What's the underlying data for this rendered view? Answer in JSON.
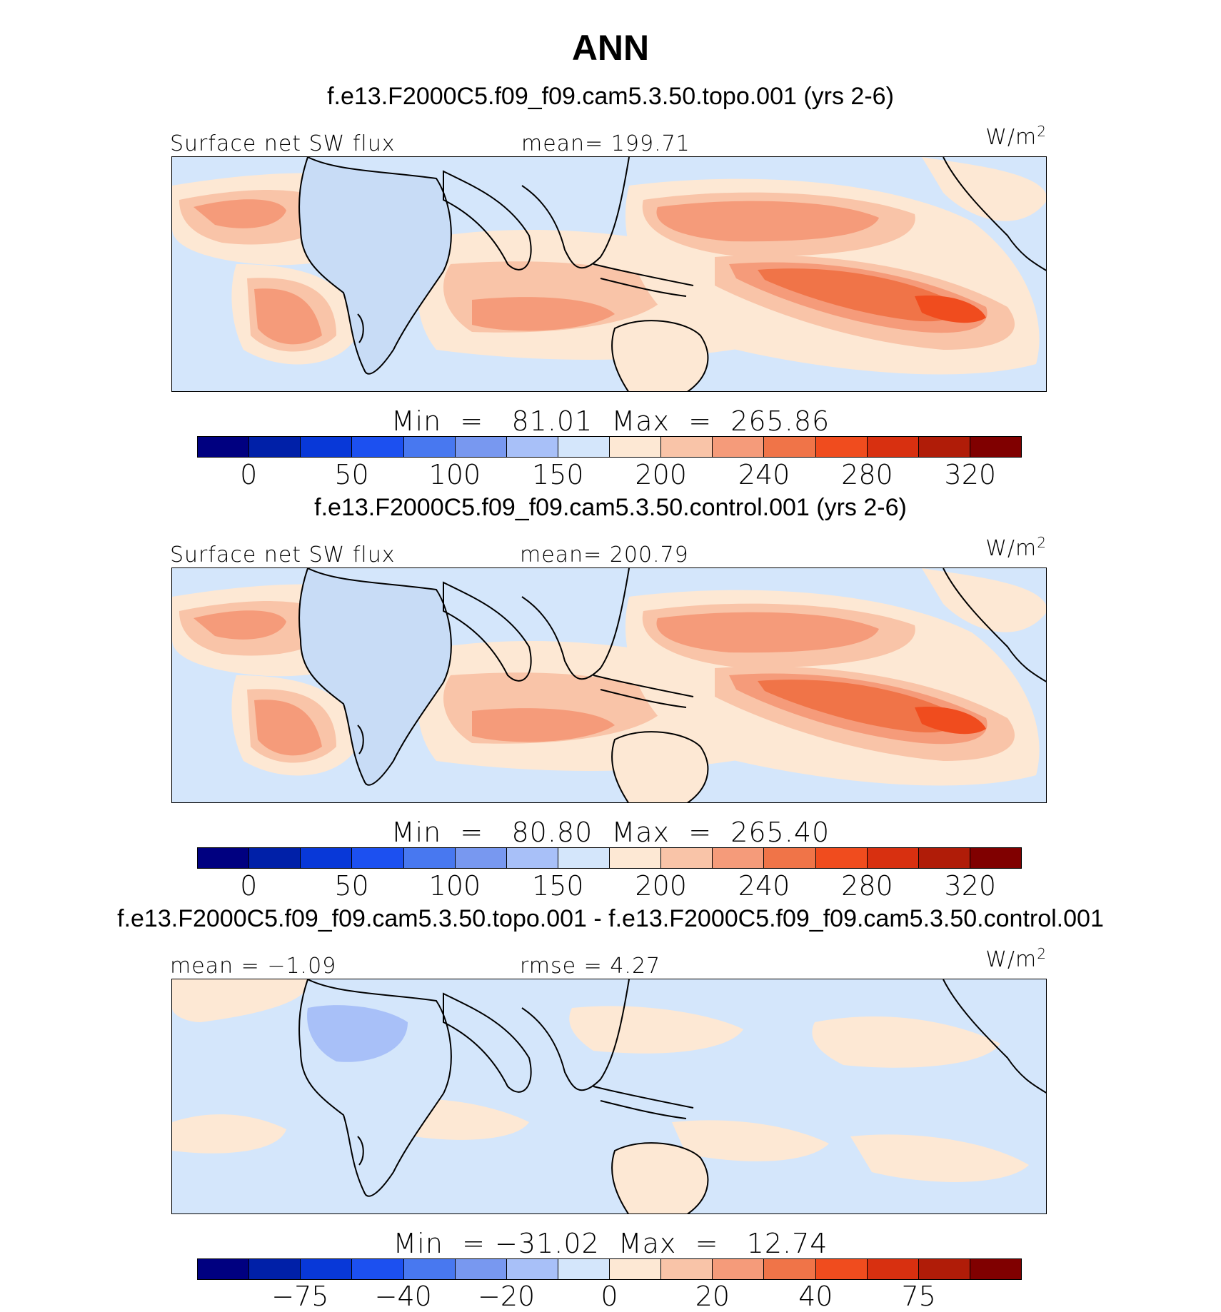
{
  "chart_data": {
    "type": "heatmap",
    "title": "ANN",
    "panels": [
      {
        "case_title": "f.e13.F2000C5.f09_f09.cam5.3.50.topo.001 (yrs 2-6)",
        "variable": "Surface net SW flux",
        "stat_label": "mean=",
        "stat_value": "199.71",
        "units": "W/m",
        "units_exp": "2",
        "min_label": "Min  =",
        "min_value": "81.01",
        "max_label": "Max  =",
        "max_value": "265.86",
        "ticks": [
          "0",
          "50",
          "100",
          "150",
          "200",
          "240",
          "280",
          "320"
        ]
      },
      {
        "case_title": "f.e13.F2000C5.f09_f09.cam5.3.50.control.001 (yrs 2-6)",
        "variable": "Surface net SW flux",
        "stat_label": "mean=",
        "stat_value": "200.79",
        "units": "W/m",
        "units_exp": "2",
        "min_label": "Min  =",
        "min_value": "80.80",
        "max_label": "Max  =",
        "max_value": "265.40",
        "ticks": [
          "0",
          "50",
          "100",
          "150",
          "200",
          "240",
          "280",
          "320"
        ]
      },
      {
        "case_title": "f.e13.F2000C5.f09_f09.cam5.3.50.topo.001 - f.e13.F2000C5.f09_f09.cam5.3.50.control.001",
        "stat1_label": "mean  =",
        "stat1_value": "−1.09",
        "stat2_label": "rmse  =",
        "stat2_value": "4.27",
        "units": "W/m",
        "units_exp": "2",
        "min_label": "Min  =",
        "min_value": "−31.02",
        "max_label": "Max  =",
        "max_value": "12.74",
        "ticks": [
          "−75",
          "−40",
          "−20",
          "0",
          "20",
          "40",
          "75"
        ]
      }
    ],
    "colormap": [
      "#000080",
      "#0020a8",
      "#0838d8",
      "#1c50f0",
      "#4878f0",
      "#7898f0",
      "#a8c0f8",
      "#d4e6fb",
      "#fde8d4",
      "#f9c4a8",
      "#f59b7a",
      "#f07448",
      "#f04c1e",
      "#d83010",
      "#b01c08",
      "#800000"
    ]
  }
}
